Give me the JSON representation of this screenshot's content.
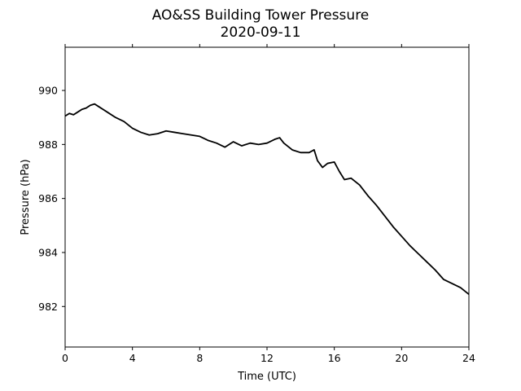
{
  "chart_data": {
    "type": "line",
    "title": "AO&SS Building Tower Pressure",
    "subtitle": "2020-09-11",
    "xlabel": "Time (UTC)",
    "ylabel": "Pressure (hPa)",
    "xlim": [
      0,
      24
    ],
    "ylim": [
      980.5,
      991.6
    ],
    "xticks": [
      0,
      4,
      8,
      12,
      16,
      20,
      24
    ],
    "yticks": [
      982,
      984,
      986,
      988,
      990
    ],
    "grid": false,
    "line_color": "#000000",
    "series": [
      {
        "x": [
          0,
          0.25,
          0.5,
          0.75,
          1.0,
          1.25,
          1.5,
          1.75,
          2.0,
          2.5,
          3.0,
          3.5,
          4.0,
          4.5,
          5.0,
          5.5,
          6.0,
          6.5,
          7.0,
          7.5,
          8.0,
          8.5,
          9.0,
          9.5,
          10.0,
          10.5,
          11.0,
          11.5,
          12.0,
          12.5,
          12.75,
          13.0,
          13.5,
          14.0,
          14.5,
          14.8,
          15.0,
          15.3,
          15.6,
          16.0,
          16.3,
          16.6,
          17.0,
          17.5,
          18.0,
          18.5,
          19.0,
          19.5,
          20.0,
          20.5,
          21.0,
          21.5,
          22.0,
          22.5,
          23.0,
          23.5,
          24.0
        ],
        "y": [
          989.05,
          989.15,
          989.1,
          989.2,
          989.3,
          989.35,
          989.45,
          989.5,
          989.4,
          989.2,
          989.0,
          988.85,
          988.6,
          988.45,
          988.35,
          988.4,
          988.5,
          988.45,
          988.4,
          988.35,
          988.3,
          988.15,
          988.05,
          987.9,
          988.1,
          987.95,
          988.05,
          988.0,
          988.05,
          988.2,
          988.25,
          988.05,
          987.8,
          987.7,
          987.7,
          987.8,
          987.4,
          987.15,
          987.3,
          987.35,
          987.0,
          986.7,
          986.75,
          986.5,
          986.1,
          985.75,
          985.35,
          984.95,
          984.6,
          984.25,
          983.95,
          983.65,
          983.35,
          983.0,
          982.85,
          982.7,
          982.45
        ]
      }
    ]
  }
}
